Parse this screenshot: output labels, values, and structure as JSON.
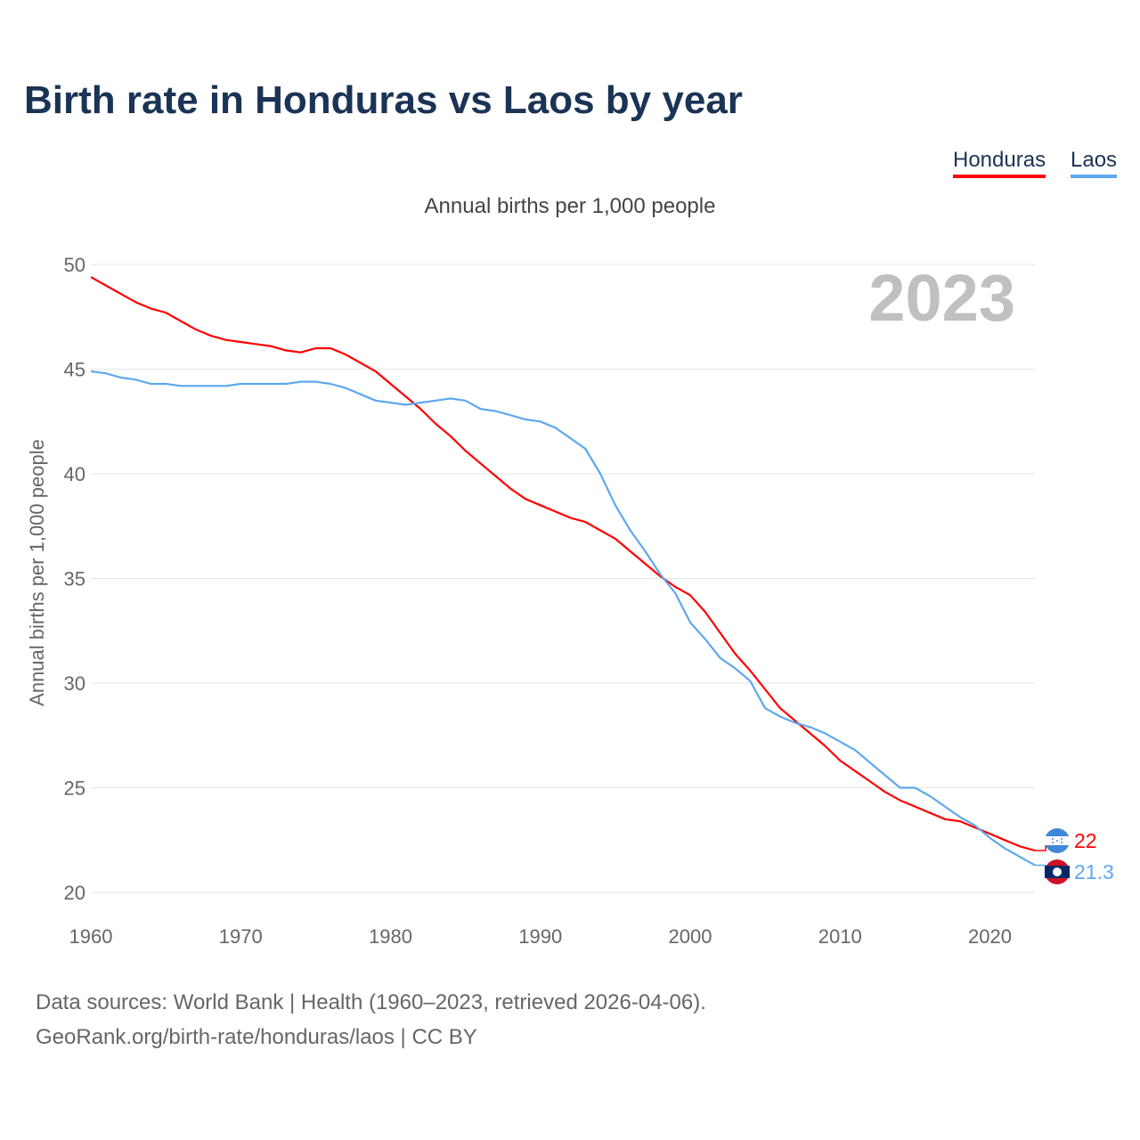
{
  "title": "Birth rate in Honduras vs Laos by year",
  "source_lines": [
    "Data sources: World Bank | Health (1960–2023, retrieved 2026-04-06).",
    "GeoRank.org/birth-rate/honduras/laos | CC BY"
  ],
  "chart_data": {
    "type": "line",
    "title": "Birth rate in Honduras vs Laos by year",
    "subtitle": "Annual births per 1,000 people",
    "xlabel": "",
    "ylabel": "Annual births per 1,000 people",
    "watermark_year": "2023",
    "xlim": [
      1960,
      2023
    ],
    "ylim": [
      20,
      50
    ],
    "xticks": [
      1960,
      1970,
      1980,
      1990,
      2000,
      2010,
      2020
    ],
    "yticks": [
      20,
      25,
      30,
      35,
      40,
      45,
      50
    ],
    "grid": true,
    "legend_position": "top-right",
    "x_start": 1960,
    "series": [
      {
        "name": "Honduras",
        "color": "#ff0000",
        "end_label": "22",
        "values": [
          49.4,
          49.0,
          48.6,
          48.2,
          47.9,
          47.7,
          47.3,
          46.9,
          46.6,
          46.4,
          46.3,
          46.2,
          46.1,
          45.9,
          45.8,
          46.0,
          46.0,
          45.7,
          45.3,
          44.9,
          44.3,
          43.7,
          43.1,
          42.4,
          41.8,
          41.1,
          40.5,
          39.9,
          39.3,
          38.8,
          38.5,
          38.2,
          37.9,
          37.7,
          37.3,
          36.9,
          36.3,
          35.7,
          35.1,
          34.6,
          34.2,
          33.4,
          32.4,
          31.4,
          30.6,
          29.7,
          28.8,
          28.2,
          27.6,
          27.0,
          26.3,
          25.8,
          25.3,
          24.8,
          24.4,
          24.1,
          23.8,
          23.5,
          23.4,
          23.1,
          22.8,
          22.5,
          22.2,
          22.0
        ]
      },
      {
        "name": "Laos",
        "color": "#5ea8ee",
        "end_label": "21.3",
        "values": [
          44.9,
          44.8,
          44.6,
          44.5,
          44.3,
          44.3,
          44.2,
          44.2,
          44.2,
          44.2,
          44.3,
          44.3,
          44.3,
          44.3,
          44.4,
          44.4,
          44.3,
          44.1,
          43.8,
          43.5,
          43.4,
          43.3,
          43.4,
          43.5,
          43.6,
          43.5,
          43.1,
          43.0,
          42.8,
          42.6,
          42.5,
          42.2,
          41.7,
          41.2,
          40.0,
          38.5,
          37.3,
          36.3,
          35.2,
          34.3,
          32.9,
          32.1,
          31.2,
          30.7,
          30.1,
          28.8,
          28.4,
          28.1,
          27.9,
          27.6,
          27.2,
          26.8,
          26.2,
          25.6,
          25.0,
          25.0,
          24.6,
          24.1,
          23.6,
          23.2,
          22.6,
          22.1,
          21.7,
          21.3
        ]
      }
    ]
  }
}
